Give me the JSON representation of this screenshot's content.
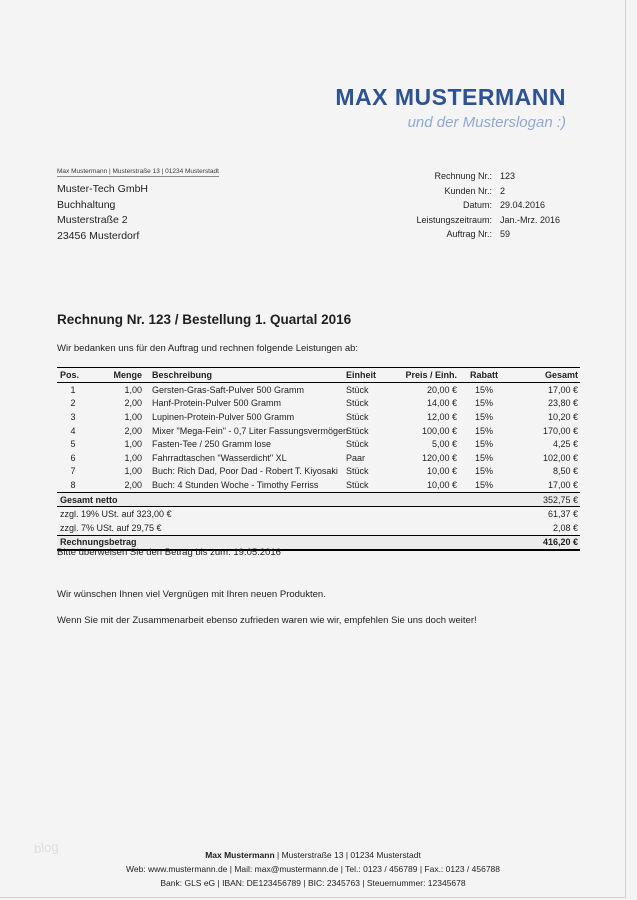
{
  "header": {
    "brand_name": "MAX MUSTERMANN",
    "slogan": "und der Musterslogan :)",
    "brand_color": "#2e5395",
    "slogan_color": "#8ea9d8"
  },
  "sender_line": "Max Mustermann | Musterstraße 13 | 01234 Musterstadt",
  "recipient": {
    "line1": "Muster-Tech GmbH",
    "line2": "Buchhaltung",
    "line3": "Musterstraße 2",
    "line4": "23456 Musterdorf"
  },
  "invoice_meta": {
    "rows": [
      {
        "label": "Rechnung Nr.:",
        "value": "123"
      },
      {
        "label": "Kunden Nr.:",
        "value": "2"
      },
      {
        "label": "Datum:",
        "value": "29.04.2016"
      },
      {
        "label": "Leistungszeitraum:",
        "value": "Jan.-Mrz. 2016"
      },
      {
        "label": "Auftrag Nr.:",
        "value": "59"
      }
    ]
  },
  "title": "Rechnung Nr. 123 / Bestellung 1. Quartal 2016",
  "intro": "Wir bedanken uns für den Auftrag und rechnen folgende Leistungen ab:",
  "items_table": {
    "headers": [
      "Pos.",
      "Menge",
      "Beschreibung",
      "Einheit",
      "Preis / Einh.",
      "Rabatt",
      "Gesamt"
    ],
    "rows": [
      [
        "1",
        "1,00",
        "Gersten-Gras-Saft-Pulver 500 Gramm",
        "Stück",
        "20,00 €",
        "15%",
        "17,00 €"
      ],
      [
        "2",
        "2,00",
        "Hanf-Protein-Pulver 500 Gramm",
        "Stück",
        "14,00 €",
        "15%",
        "23,80 €"
      ],
      [
        "3",
        "1,00",
        "Lupinen-Protein-Pulver 500 Gramm",
        "Stück",
        "12,00 €",
        "15%",
        "10,20 €"
      ],
      [
        "4",
        "2,00",
        "Mixer \"Mega-Fein\" - 0,7 Liter Fassungsvermögen",
        "Stück",
        "100,00 €",
        "15%",
        "170,00 €"
      ],
      [
        "5",
        "1,00",
        "Fasten-Tee / 250 Gramm lose",
        "Stück",
        "5,00 €",
        "15%",
        "4,25 €"
      ],
      [
        "6",
        "1,00",
        "Fahrradtaschen \"Wasserdicht\" XL",
        "Paar",
        "120,00 €",
        "15%",
        "102,00 €"
      ],
      [
        "7",
        "1,00",
        "Buch: Rich Dad, Poor Dad - Robert T. Kiyosaki",
        "Stück",
        "10,00 €",
        "15%",
        "8,50 €"
      ],
      [
        "8",
        "2,00",
        "Buch: 4 Stunden Woche - Timothy Ferriss",
        "Stück",
        "10,00 €",
        "15%",
        "17,00 €"
      ]
    ],
    "totals": [
      {
        "label": "Gesamt netto",
        "value": "352,75 €",
        "emphasis": "subtotal"
      },
      {
        "label": "zzgl. 19% USt. auf 323,00 €",
        "value": "61,37 €",
        "emphasis": "tax"
      },
      {
        "label": "zzgl. 7% USt. auf 29,75 €",
        "value": "2,08 €",
        "emphasis": "tax"
      },
      {
        "label": "Rechnungsbetrag",
        "value": "416,20 €",
        "emphasis": "grand"
      }
    ]
  },
  "notes": {
    "payment": "Bitte überweisen Sie den Betrag bis zum: 19.05.2016",
    "thanks": "Wir wünschen Ihnen viel Vergnügen mit Ihren neuen Produkten.",
    "referral": "Wenn Sie mit der Zusammenarbeit ebenso zufrieden waren wie wir, empfehlen Sie uns doch weiter!"
  },
  "footer": {
    "name": "Max Mustermann",
    "line1_rest": " | Musterstraße 13 | 01234 Musterstadt",
    "line2": "Web: www.mustermann.de | Mail: max@mustermann.de | Tel.: 0123 / 456789 | Fax.: 0123 / 456788",
    "line3": "Bank: GLS eG | IBAN: DE123456789 | BIC: 2345763 | Steuernummer: 12345678"
  },
  "watermark": "blog"
}
